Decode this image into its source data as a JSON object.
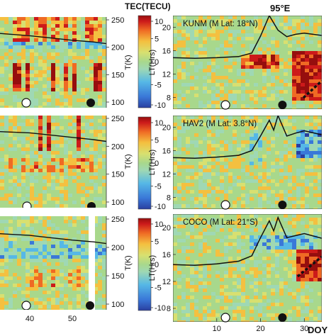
{
  "figure": {
    "colorbar_title": "TEC(TECU)",
    "longitude_label": "95°E",
    "x_axis_label": "DOY"
  },
  "colors": {
    "background": "#a8d88c",
    "palette": [
      "#2a3fa0",
      "#3a78d8",
      "#56b8e6",
      "#9fd8b4",
      "#a8d88c",
      "#d8e070",
      "#f4c040",
      "#ef6a24",
      "#cc1a1a",
      "#960e0e"
    ]
  },
  "chart_data": [
    {
      "type": "heatmap",
      "panel": "left-top (partially cropped)",
      "ylabel": "T(K)",
      "yticks": [
        100,
        150,
        200,
        250
      ],
      "ylim": [
        100,
        250
      ],
      "xticks": [],
      "series": [
        {
          "values_x": [
            33,
            40,
            45,
            50,
            55,
            58
          ],
          "values": [
            226,
            222,
            218,
            214,
            211,
            208
          ]
        }
      ],
      "markers": [
        {
          "x": 36,
          "kind": "open-circle"
        },
        {
          "x": 54,
          "kind": "filled-circle"
        }
      ]
    },
    {
      "type": "heatmap",
      "panel": "left-middle (partially cropped)",
      "ylabel": "T(K)",
      "yticks": [
        100,
        150,
        200,
        250
      ],
      "ylim": [
        100,
        250
      ],
      "xticks": [],
      "series": [
        {
          "values_x": [
            33,
            40,
            45,
            50,
            55,
            58
          ],
          "values": [
            228,
            226,
            222,
            218,
            214,
            211
          ]
        }
      ],
      "markers": [
        {
          "x": 36,
          "kind": "open-circle"
        },
        {
          "x": 54,
          "kind": "filled-circle"
        }
      ]
    },
    {
      "type": "heatmap",
      "panel": "left-bottom (partially cropped)",
      "ylabel": "T(K)",
      "yticks": [
        100,
        150,
        200,
        250
      ],
      "ylim": [
        100,
        250
      ],
      "xticks": [
        40,
        50
      ],
      "series": [
        {
          "values_x": [
            33,
            40,
            45,
            50,
            55,
            58
          ],
          "values": [
            226,
            223,
            219,
            215,
            212,
            209
          ]
        }
      ],
      "markers": [
        {
          "x": 36,
          "kind": "open-circle"
        },
        {
          "x": 54,
          "kind": "filled-circle"
        }
      ]
    },
    {
      "type": "heatmap",
      "panel_title": "KUNM (M Lat: 18°N)",
      "ylabel": "LT(Hrs)",
      "yticks": [
        8,
        12,
        16,
        20
      ],
      "ylim": [
        6,
        22
      ],
      "xlim": [
        0,
        34
      ],
      "xticks": [],
      "series": [
        {
          "values_x": [
            0,
            5,
            10,
            15,
            18,
            20,
            22,
            24,
            26,
            28,
            30,
            34
          ],
          "values": [
            14.8,
            14.7,
            14.8,
            15.0,
            15.6,
            18.5,
            22.0,
            19.5,
            18.4,
            18.8,
            19.0,
            18.6
          ]
        }
      ],
      "markers": [
        {
          "x": 12,
          "kind": "open-circle"
        },
        {
          "x": 25,
          "kind": "filled-circle"
        }
      ]
    },
    {
      "type": "heatmap",
      "panel_title": "HAV2 (M Lat: 3.8°N)",
      "ylabel": "LT(Hrs)",
      "yticks": [
        8,
        12,
        16,
        20
      ],
      "ylim": [
        6,
        22
      ],
      "xlim": [
        0,
        34
      ],
      "xticks": [],
      "series": [
        {
          "values_x": [
            0,
            5,
            10,
            15,
            18,
            20,
            22,
            23,
            24,
            26,
            28,
            30,
            34
          ],
          "values": [
            14.8,
            14.7,
            14.9,
            15.2,
            16.0,
            18.5,
            21.2,
            19.5,
            22.0,
            18.5,
            19.0,
            19.4,
            18.7
          ]
        }
      ],
      "markers": [
        {
          "x": 12,
          "kind": "open-circle"
        },
        {
          "x": 25,
          "kind": "filled-circle"
        }
      ]
    },
    {
      "type": "heatmap",
      "panel_title": "COCO (M Lat: 21°S)",
      "ylabel": "LT(Hrs)",
      "yticks": [
        8,
        12,
        16,
        20
      ],
      "ylim": [
        6,
        22
      ],
      "xlim": [
        0,
        34
      ],
      "xticks": [
        10,
        20,
        30
      ],
      "series": [
        {
          "values_x": [
            0,
            5,
            10,
            15,
            18,
            20,
            22,
            23,
            24,
            26,
            28,
            30,
            34
          ],
          "values": [
            14.5,
            14.4,
            14.6,
            15.0,
            15.8,
            18.5,
            21.0,
            19.5,
            21.5,
            18.5,
            18.8,
            19.1,
            18.4
          ]
        }
      ],
      "markers": [
        {
          "x": 12,
          "kind": "open-circle"
        },
        {
          "x": 25,
          "kind": "filled-circle"
        }
      ]
    },
    {
      "type": "colorbar",
      "ticks": [
        -10,
        -5,
        0,
        5,
        10
      ],
      "range": [
        -10,
        10
      ]
    }
  ]
}
